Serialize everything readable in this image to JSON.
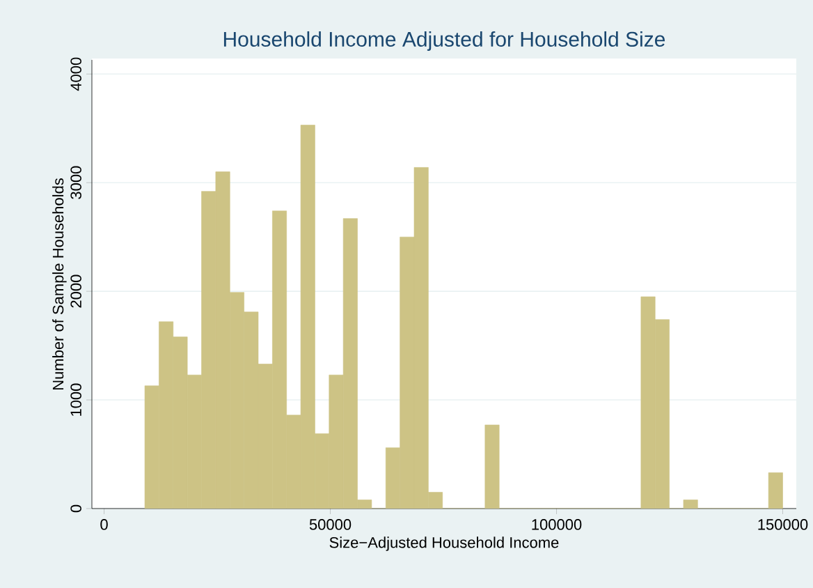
{
  "chart_data": {
    "type": "histogram",
    "title": "Household Income Adjusted for Household Size",
    "xlabel": "Size−Adjusted Household Income",
    "ylabel": "Number of Sample Households",
    "bins": [
      9000,
      12133,
      15267,
      18400,
      21533,
      24667,
      27800,
      30933,
      34067,
      37200,
      40333,
      43467,
      46600,
      49733,
      52867,
      56000,
      59133,
      62267,
      65400,
      68533,
      71667,
      74800,
      77933,
      81067,
      84200,
      87333,
      90467,
      93600,
      96733,
      99867,
      103000,
      106133,
      109267,
      112400,
      115533,
      118667,
      121800,
      124933,
      128067,
      131200,
      134333,
      137467,
      140600,
      143733,
      146867,
      150000
    ],
    "values": [
      1130,
      1720,
      1580,
      1230,
      2920,
      3100,
      1990,
      1810,
      1330,
      2740,
      860,
      3530,
      690,
      1230,
      2670,
      80,
      0,
      560,
      2500,
      3140,
      150,
      0,
      0,
      0,
      770,
      0,
      0,
      0,
      0,
      0,
      0,
      0,
      0,
      0,
      0,
      1950,
      1740,
      0,
      80,
      0,
      0,
      0,
      0,
      0,
      330
    ],
    "color": "#cdc385",
    "xlim": [
      -2700,
      153000
    ],
    "ylim": [
      0,
      4130
    ],
    "xticks": [
      0,
      50000,
      100000,
      150000
    ],
    "yticks": [
      0,
      1000,
      2000,
      3000,
      4000
    ],
    "grid": "y"
  }
}
